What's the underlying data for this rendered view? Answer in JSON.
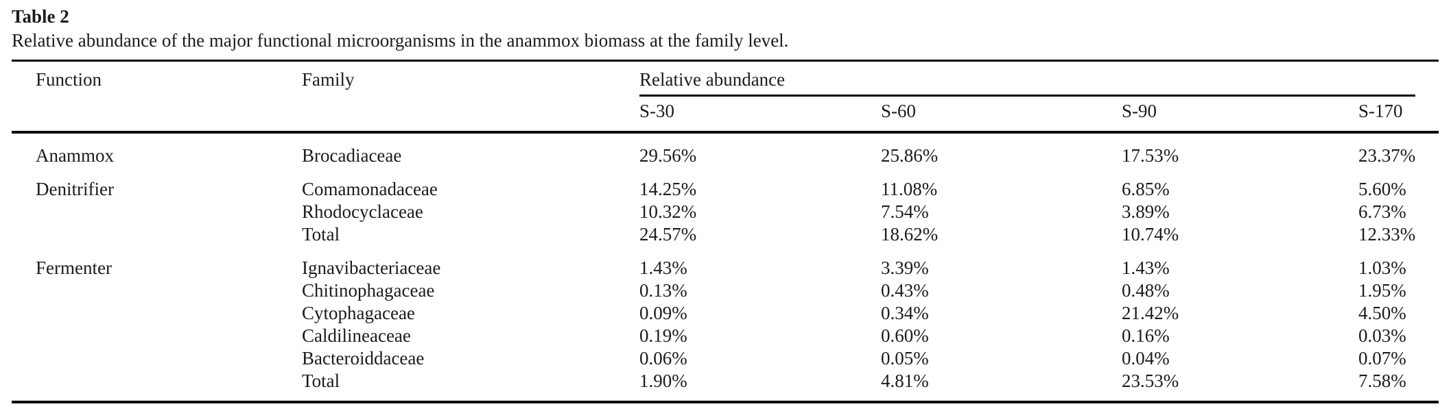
{
  "title": "Table 2",
  "caption": "Relative abundance of the major functional microorganisms in the anammox biomass at the family level.",
  "colors": {
    "background": "#ffffff",
    "text": "#1b1b1b",
    "rule": "#000000"
  },
  "table": {
    "headers": {
      "function": "Function",
      "family": "Family",
      "abundance_group": "Relative abundance",
      "samples": [
        "S-30",
        "S-60",
        "S-90",
        "S-170"
      ]
    },
    "groups": [
      {
        "function": "Anammox",
        "rows": [
          {
            "family": "Brocadiaceae",
            "values": [
              "29.56%",
              "25.86%",
              "17.53%",
              "23.37%"
            ]
          }
        ]
      },
      {
        "function": "Denitrifier",
        "rows": [
          {
            "family": "Comamonadaceae",
            "values": [
              "14.25%",
              "11.08%",
              "6.85%",
              "5.60%"
            ]
          },
          {
            "family": "Rhodocyclaceae",
            "values": [
              "10.32%",
              "7.54%",
              "3.89%",
              "6.73%"
            ]
          },
          {
            "family": "Total",
            "values": [
              "24.57%",
              "18.62%",
              "10.74%",
              "12.33%"
            ]
          }
        ]
      },
      {
        "function": "Fermenter",
        "rows": [
          {
            "family": "Ignavibacteriaceae",
            "values": [
              "1.43%",
              "3.39%",
              "1.43%",
              "1.03%"
            ]
          },
          {
            "family": "Chitinophagaceae",
            "values": [
              "0.13%",
              "0.43%",
              "0.48%",
              "1.95%"
            ]
          },
          {
            "family": "Cytophagaceae",
            "values": [
              "0.09%",
              "0.34%",
              "21.42%",
              "4.50%"
            ]
          },
          {
            "family": "Caldilineaceae",
            "values": [
              "0.19%",
              "0.60%",
              "0.16%",
              "0.03%"
            ]
          },
          {
            "family": "Bacteroiddaceae",
            "values": [
              "0.06%",
              "0.05%",
              "0.04%",
              "0.07%"
            ]
          },
          {
            "family": "Total",
            "values": [
              "1.90%",
              "4.81%",
              "23.53%",
              "7.58%"
            ]
          }
        ]
      }
    ]
  }
}
